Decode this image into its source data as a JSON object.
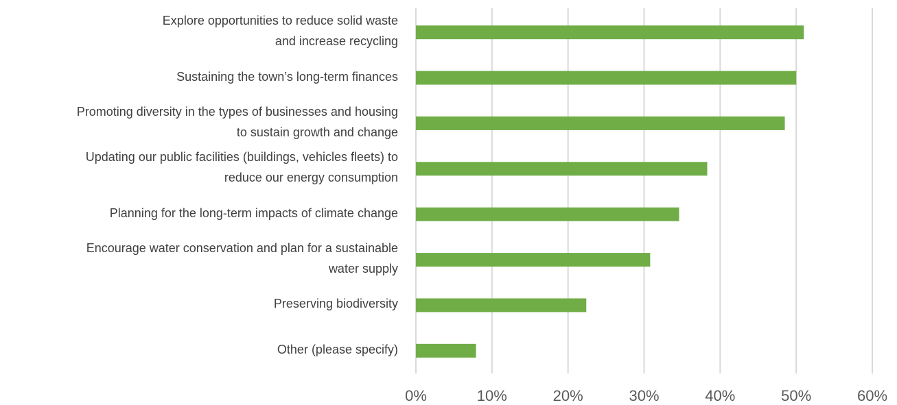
{
  "chart_data": {
    "type": "bar",
    "orientation": "horizontal",
    "categories": [
      "Explore opportunities to reduce solid waste\nand increase recycling",
      "Sustaining the town’s long-term finances",
      "Promoting diversity in the types of businesses and housing\nto sustain growth and change",
      "Updating our public facilities (buildings, vehicles fleets) to\nreduce our energy consumption",
      "Planning for the long-term impacts of climate change",
      "Encourage water conservation and plan for a sustainable\nwater supply",
      "Preserving biodiversity",
      "Other (please specify)"
    ],
    "values": [
      51,
      50,
      48.5,
      38.3,
      34.6,
      30.8,
      22.4,
      7.9
    ],
    "color": "#70ad47",
    "xlim": [
      0,
      60
    ],
    "xticks": [
      {
        "value": 0,
        "label": "0%"
      },
      {
        "value": 10,
        "label": "10%"
      },
      {
        "value": 20,
        "label": "20%"
      },
      {
        "value": 30,
        "label": "30%"
      },
      {
        "value": 40,
        "label": "40%"
      },
      {
        "value": 50,
        "label": "50%"
      },
      {
        "value": 60,
        "label": "60%"
      }
    ],
    "grid": true
  }
}
